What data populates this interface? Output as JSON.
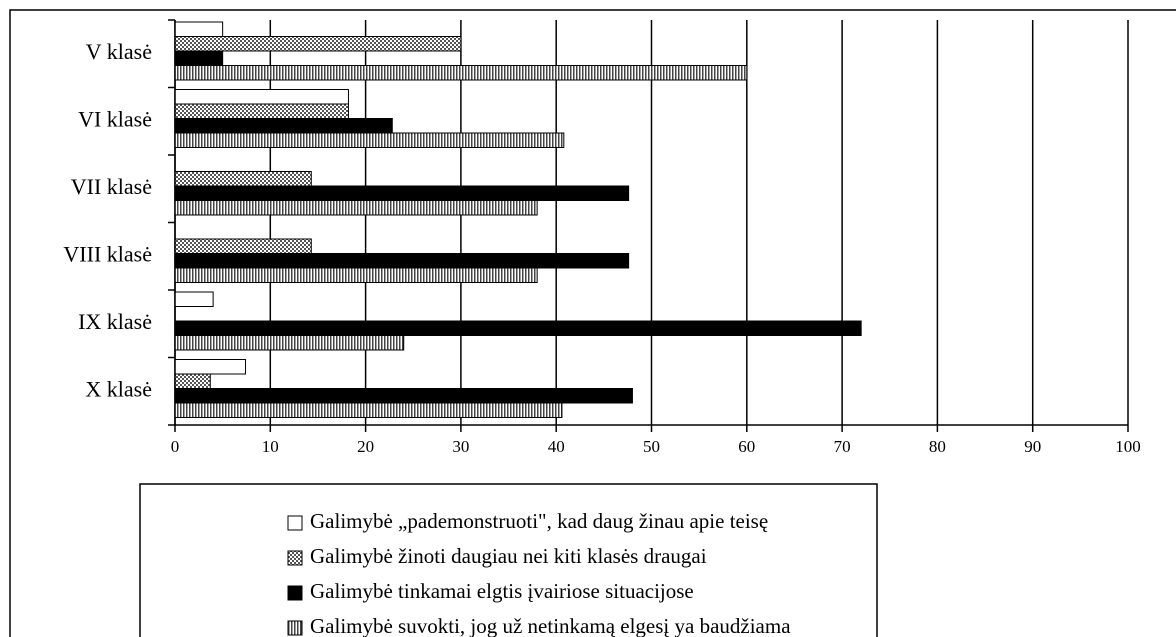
{
  "chart_data": {
    "type": "bar",
    "orientation": "horizontal",
    "categories": [
      "V klasė",
      "VI klasė",
      "VII klasė",
      "VIII klasė",
      "IX klasė",
      "X klasė"
    ],
    "series": [
      {
        "name": "Galimybė „pademonstruoti\", kad daug žinau apie teisę",
        "color": "#ffffff",
        "pattern": "none",
        "values": [
          5,
          18.2,
          0,
          0,
          4,
          7.4
        ]
      },
      {
        "name": "Galimybė žinoti daugiau nei kiti klasės draugai",
        "color": "#a0a0a0",
        "pattern": "dots",
        "values": [
          30,
          18.2,
          14.3,
          14.3,
          0,
          3.7
        ]
      },
      {
        "name": "Galimybė tinkamai elgtis įvairiose situacijose",
        "color": "#000000",
        "pattern": "none",
        "values": [
          5,
          22.8,
          47.6,
          47.6,
          72,
          48
        ]
      },
      {
        "name": "Galimybė suvokti, jog už netinkamą elgesį ya baudžiama",
        "color": "#808080",
        "pattern": "vertical-stripes",
        "values": [
          60,
          40.8,
          38,
          38,
          24,
          40.6
        ]
      }
    ],
    "xlim": [
      0,
      100
    ],
    "xticks": [
      0,
      10,
      20,
      30,
      40,
      50,
      60,
      70,
      80,
      90,
      100
    ],
    "grid": true,
    "legend": "bottom"
  }
}
